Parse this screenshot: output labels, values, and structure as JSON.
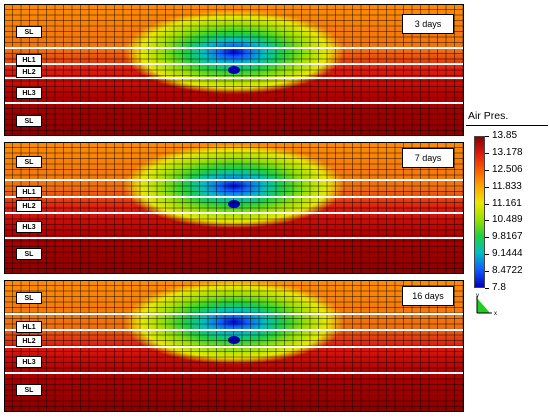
{
  "panels": [
    {
      "time_label": "3 days",
      "layers": [
        "SL",
        "HL1",
        "HL2",
        "HL3",
        "SL"
      ]
    },
    {
      "time_label": "7 days",
      "layers": [
        "SL",
        "HL1",
        "HL2",
        "HL3",
        "SL"
      ]
    },
    {
      "time_label": "16 days",
      "layers": [
        "SL",
        "HL1",
        "HL2",
        "HL3",
        "SL"
      ]
    }
  ],
  "legend": {
    "title": "Air Pres.",
    "values": [
      "13.85",
      "13.178",
      "12.506",
      "11.833",
      "11.161",
      "10.489",
      "9.8167",
      "9.1444",
      "8.4722",
      "7.8"
    ]
  },
  "axes": {
    "y_label": "y",
    "x_label": "x"
  },
  "colors": {
    "max": "#8b0000",
    "high": "#dd1a10",
    "mid_high": "#ff8c00",
    "mid": "#e8e800",
    "mid_low": "#20d040",
    "low": "#1060ff",
    "min": "#0000c0",
    "mesh_line": "#000000",
    "layer_divider": "#ffffff"
  }
}
